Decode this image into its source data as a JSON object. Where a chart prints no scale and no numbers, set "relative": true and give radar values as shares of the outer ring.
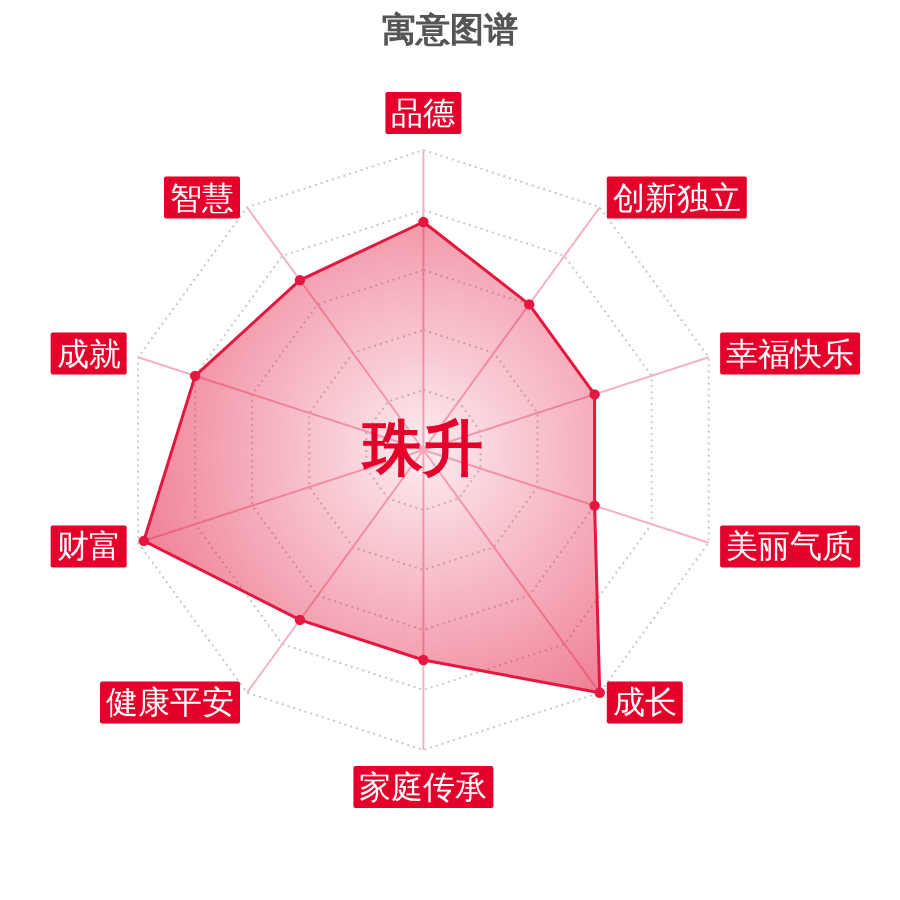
{
  "chart_data": {
    "type": "radar",
    "title": "寓意图谱",
    "categories": [
      "品德",
      "创新独立",
      "幸福快乐",
      "美丽气质",
      "成长",
      "家庭传承",
      "健康平安",
      "财富",
      "成就",
      "智慧"
    ],
    "relative": true,
    "series": [
      {
        "color": "#e3173f",
        "values": [
          0.76,
          0.6,
          0.6,
          0.6,
          1.0,
          0.7,
          0.7,
          0.98,
          0.8,
          0.7
        ]
      }
    ],
    "annotations": [
      "珠升"
    ],
    "grid": true,
    "marker": "circle"
  }
}
